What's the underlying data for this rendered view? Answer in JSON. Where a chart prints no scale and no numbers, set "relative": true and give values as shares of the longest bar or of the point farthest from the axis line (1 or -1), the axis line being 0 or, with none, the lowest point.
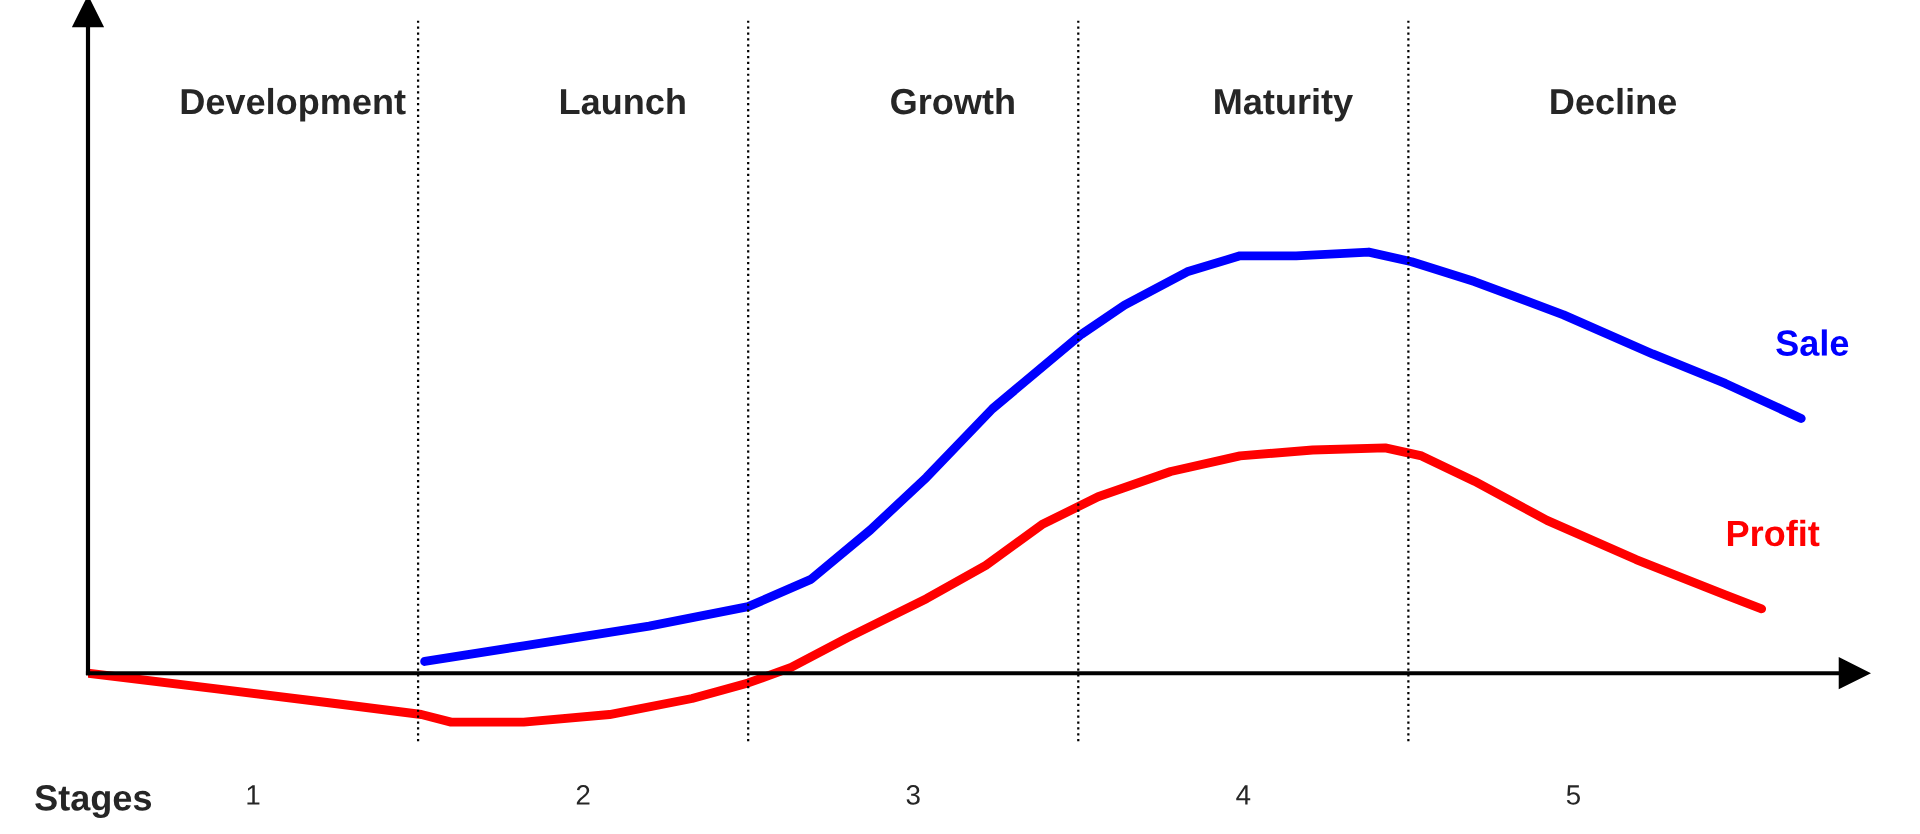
{
  "chart_data": {
    "type": "line",
    "relative": true,
    "xlabel": "Stages",
    "xlim": [
      0.5,
      5.85
    ],
    "xticks": [
      1,
      2,
      3,
      4,
      5
    ],
    "series": [
      {
        "name": "Sale",
        "color": "#0000ff",
        "x": [
          1.52,
          1.82,
          2.2,
          2.5,
          2.69,
          2.87,
          3.04,
          3.24,
          3.51,
          3.64,
          3.83,
          3.99,
          4.16,
          4.38,
          4.51,
          4.7,
          4.97,
          5.24,
          5.46,
          5.69
        ],
        "values": [
          0.028,
          0.065,
          0.112,
          0.158,
          0.223,
          0.34,
          0.465,
          0.628,
          0.805,
          0.874,
          0.953,
          0.991,
          0.991,
          1.0,
          0.977,
          0.93,
          0.851,
          0.758,
          0.688,
          0.605
        ]
      },
      {
        "name": "Profit",
        "color": "#ff0000",
        "x": [
          0.5,
          0.89,
          1.23,
          1.51,
          1.6,
          1.82,
          2.08,
          2.33,
          2.5,
          2.63,
          2.8,
          3.04,
          3.22,
          3.39,
          3.56,
          3.78,
          3.99,
          4.21,
          4.43,
          4.54,
          4.7,
          4.92,
          5.19,
          5.46,
          5.57
        ],
        "values": [
          0,
          -0.037,
          -0.07,
          -0.098,
          -0.116,
          -0.116,
          -0.098,
          -0.06,
          -0.023,
          0.014,
          0.084,
          0.177,
          0.256,
          0.353,
          0.419,
          0.479,
          0.516,
          0.53,
          0.535,
          0.516,
          0.456,
          0.363,
          0.27,
          0.186,
          0.153
        ]
      }
    ],
    "ref_lines": [
      {
        "axis": "x",
        "value": 1.5,
        "color": "#000000",
        "line_style": "dotted"
      },
      {
        "axis": "x",
        "value": 2.5,
        "color": "#000000",
        "line_style": "dotted"
      },
      {
        "axis": "x",
        "value": 3.5,
        "color": "#000000",
        "line_style": "dotted"
      },
      {
        "axis": "x",
        "value": 4.5,
        "color": "#000000",
        "line_style": "dotted"
      }
    ],
    "annotations": [
      "Development",
      "Launch",
      "Growth",
      "Maturity",
      "Decline"
    ],
    "grid": false,
    "legend": false,
    "marker": "none",
    "line_style": "solid"
  }
}
